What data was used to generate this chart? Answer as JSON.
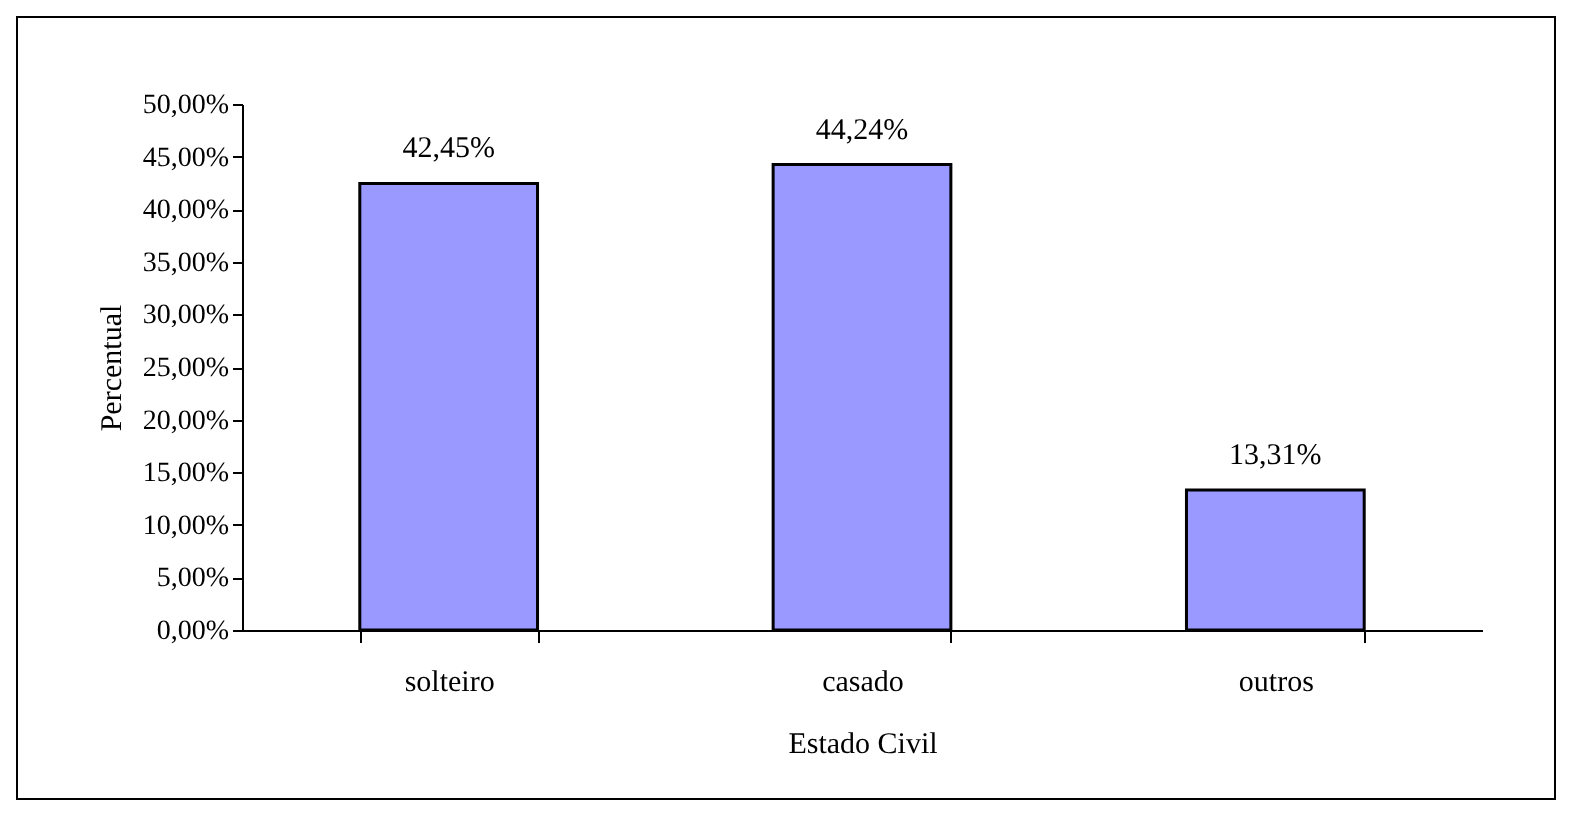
{
  "chart_data": {
    "type": "bar",
    "xlabel": "Estado Civil",
    "ylabel": "Percentual",
    "categories": [
      "solteiro",
      "casado",
      "outros"
    ],
    "values": [
      42.45,
      44.24,
      13.31
    ],
    "value_labels": [
      "42,45%",
      "44,24%",
      "13,31%"
    ],
    "color": "#9999ff",
    "ylim": [
      0,
      50
    ],
    "yticks": [
      {
        "value": 0,
        "label": "0,00%"
      },
      {
        "value": 5,
        "label": "5,00%"
      },
      {
        "value": 10,
        "label": "10,00%"
      },
      {
        "value": 15,
        "label": "15,00%"
      },
      {
        "value": 20,
        "label": "20,00%"
      },
      {
        "value": 25,
        "label": "25,00%"
      },
      {
        "value": 30,
        "label": "30,00%"
      },
      {
        "value": 35,
        "label": "35,00%"
      },
      {
        "value": 40,
        "label": "40,00%"
      },
      {
        "value": 45,
        "label": "45,00%"
      },
      {
        "value": 50,
        "label": "50,00%"
      }
    ],
    "grid": false
  }
}
